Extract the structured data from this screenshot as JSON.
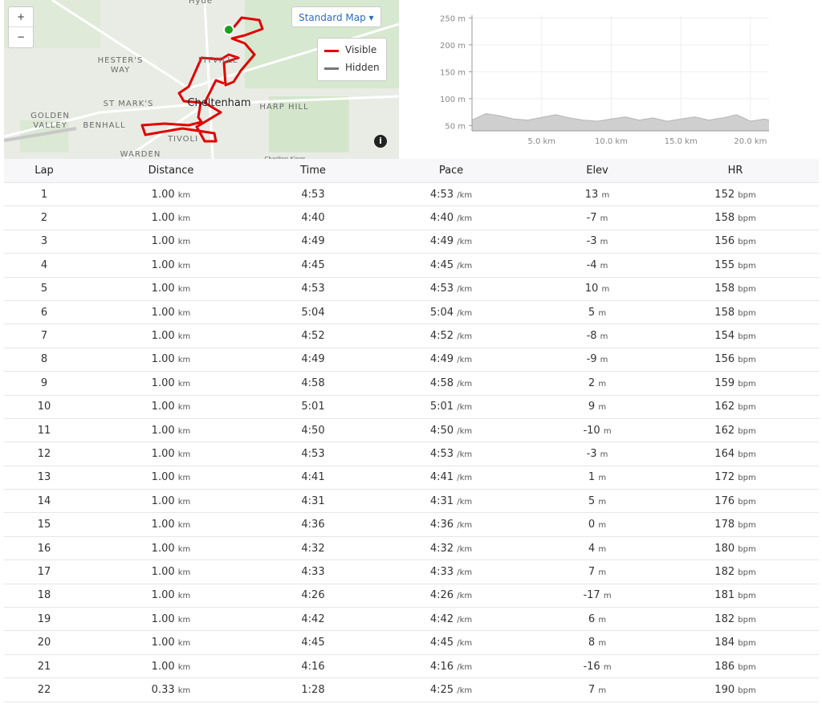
{
  "map": {
    "zoom_in": "+",
    "zoom_out": "−",
    "map_style": "Standard Map",
    "legend": [
      "Visible",
      "Hidden"
    ],
    "info": "i",
    "place_labels": [
      "Hyde",
      "HESTER'S WAY",
      "ST MARK'S",
      "GOLDEN VALLEY",
      "BENHALL",
      "PITVILLE",
      "Cheltenham",
      "HARP HILL",
      "TIVOLI",
      "WARDEN",
      "Charlton Kings"
    ]
  },
  "chart_data": {
    "type": "area",
    "color": "#cfcfcf",
    "line_color": "#b5b5b5",
    "grid": true,
    "x": [
      0,
      1,
      2,
      3,
      4,
      5,
      6,
      7,
      8,
      9,
      10,
      11,
      12,
      13,
      14,
      15,
      16,
      17,
      18,
      19,
      20,
      21,
      21.33
    ],
    "values": [
      60,
      72,
      68,
      62,
      60,
      65,
      70,
      64,
      60,
      58,
      62,
      66,
      60,
      64,
      58,
      62,
      66,
      60,
      64,
      70,
      58,
      62,
      60
    ],
    "xlim": [
      0,
      21.33
    ],
    "ylim": [
      40,
      255
    ],
    "xticks": [
      {
        "value": 5,
        "label": "5.0 km"
      },
      {
        "value": 10,
        "label": "10.0 km"
      },
      {
        "value": 15,
        "label": "15.0 km"
      },
      {
        "value": 20,
        "label": "20.0 km"
      }
    ],
    "yticks": [
      {
        "value": 50,
        "label": "50 m"
      },
      {
        "value": 100,
        "label": "100 m"
      },
      {
        "value": 150,
        "label": "150 m"
      },
      {
        "value": 200,
        "label": "200 m"
      },
      {
        "value": 250,
        "label": "250 m"
      }
    ]
  },
  "table": {
    "headers": [
      "Lap",
      "Distance",
      "Time",
      "Pace",
      "Elev",
      "HR"
    ],
    "rows": [
      [
        "1",
        "1.00",
        "km",
        "4:53",
        "4:53",
        "/km",
        "13",
        "m",
        "152",
        "bpm"
      ],
      [
        "2",
        "1.00",
        "km",
        "4:40",
        "4:40",
        "/km",
        "-7",
        "m",
        "158",
        "bpm"
      ],
      [
        "3",
        "1.00",
        "km",
        "4:49",
        "4:49",
        "/km",
        "-3",
        "m",
        "156",
        "bpm"
      ],
      [
        "4",
        "1.00",
        "km",
        "4:45",
        "4:45",
        "/km",
        "-4",
        "m",
        "155",
        "bpm"
      ],
      [
        "5",
        "1.00",
        "km",
        "4:53",
        "4:53",
        "/km",
        "10",
        "m",
        "158",
        "bpm"
      ],
      [
        "6",
        "1.00",
        "km",
        "5:04",
        "5:04",
        "/km",
        "5",
        "m",
        "158",
        "bpm"
      ],
      [
        "7",
        "1.00",
        "km",
        "4:52",
        "4:52",
        "/km",
        "-8",
        "m",
        "154",
        "bpm"
      ],
      [
        "8",
        "1.00",
        "km",
        "4:49",
        "4:49",
        "/km",
        "-9",
        "m",
        "156",
        "bpm"
      ],
      [
        "9",
        "1.00",
        "km",
        "4:58",
        "4:58",
        "/km",
        "2",
        "m",
        "159",
        "bpm"
      ],
      [
        "10",
        "1.00",
        "km",
        "5:01",
        "5:01",
        "/km",
        "9",
        "m",
        "162",
        "bpm"
      ],
      [
        "11",
        "1.00",
        "km",
        "4:50",
        "4:50",
        "/km",
        "-10",
        "m",
        "162",
        "bpm"
      ],
      [
        "12",
        "1.00",
        "km",
        "4:53",
        "4:53",
        "/km",
        "-3",
        "m",
        "164",
        "bpm"
      ],
      [
        "13",
        "1.00",
        "km",
        "4:41",
        "4:41",
        "/km",
        "1",
        "m",
        "172",
        "bpm"
      ],
      [
        "14",
        "1.00",
        "km",
        "4:31",
        "4:31",
        "/km",
        "5",
        "m",
        "176",
        "bpm"
      ],
      [
        "15",
        "1.00",
        "km",
        "4:36",
        "4:36",
        "/km",
        "0",
        "m",
        "178",
        "bpm"
      ],
      [
        "16",
        "1.00",
        "km",
        "4:32",
        "4:32",
        "/km",
        "4",
        "m",
        "180",
        "bpm"
      ],
      [
        "17",
        "1.00",
        "km",
        "4:33",
        "4:33",
        "/km",
        "7",
        "m",
        "182",
        "bpm"
      ],
      [
        "18",
        "1.00",
        "km",
        "4:26",
        "4:26",
        "/km",
        "-17",
        "m",
        "181",
        "bpm"
      ],
      [
        "19",
        "1.00",
        "km",
        "4:42",
        "4:42",
        "/km",
        "6",
        "m",
        "182",
        "bpm"
      ],
      [
        "20",
        "1.00",
        "km",
        "4:45",
        "4:45",
        "/km",
        "8",
        "m",
        "184",
        "bpm"
      ],
      [
        "21",
        "1.00",
        "km",
        "4:16",
        "4:16",
        "/km",
        "-16",
        "m",
        "186",
        "bpm"
      ],
      [
        "22",
        "0.33",
        "km",
        "1:28",
        "4:25",
        "/km",
        "7",
        "m",
        "190",
        "bpm"
      ]
    ]
  }
}
